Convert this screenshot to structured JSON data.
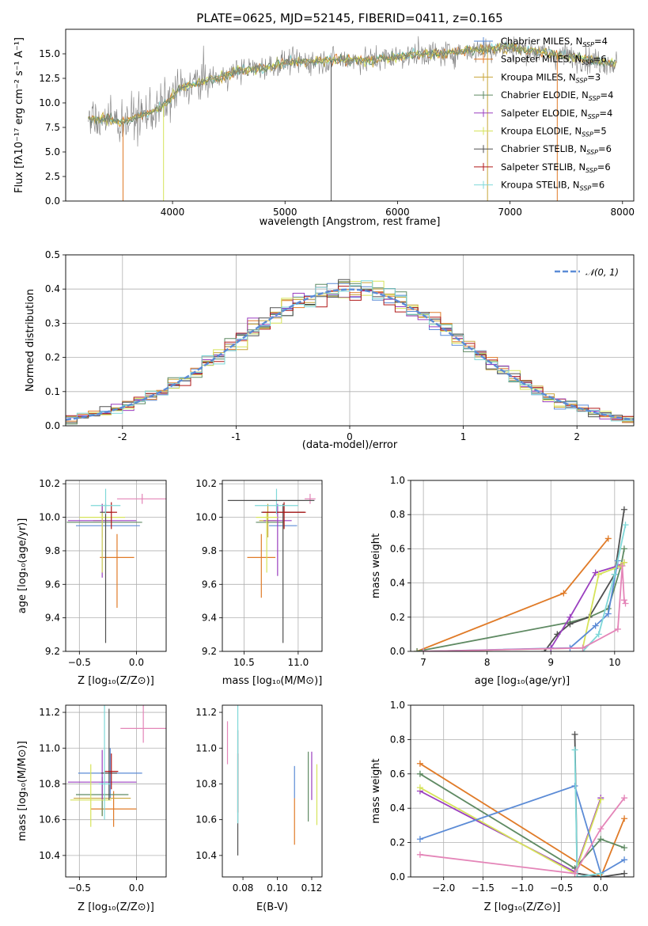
{
  "colors": {
    "chabrier_miles": "#5b8bd6",
    "salpeter_miles": "#e07b28",
    "kroupa_miles": "#c8a53a",
    "chabrier_elodie": "#5f8a63",
    "salpeter_elodie": "#9a3fbf",
    "kroupa_elodie": "#d6e35a",
    "chabrier_stelib": "#505050",
    "salpeter_stelib": "#b01818",
    "kroupa_stelib": "#7fd8d8",
    "pink": "#e485b8",
    "spectrum": "#7f7f7f",
    "gauss": "#5b8bd6",
    "grid": "#b0b0b0"
  },
  "chart_data": [
    {
      "id": "spectrum",
      "type": "line",
      "title": "PLATE=0625, MJD=52145, FIBERID=0411, z=0.165",
      "xlabel": "wavelength [Angstrom, rest frame]",
      "ylabel": "Flux [fλ10⁻¹⁷ erg cm⁻² s⁻¹ A⁻¹]",
      "xlim": [
        3050,
        8100
      ],
      "ylim": [
        0,
        17.5
      ],
      "xticks": [
        4000,
        5000,
        6000,
        7000,
        8000
      ],
      "yticks": [
        0.0,
        2.5,
        5.0,
        7.5,
        10.0,
        12.5,
        15.0
      ],
      "grid": false,
      "legend_position": "right",
      "legend": [
        {
          "key": "chabrier_miles",
          "label": "Chabrier MILES, N",
          "sub": "SSP",
          "tail": "=4"
        },
        {
          "key": "salpeter_miles",
          "label": "Salpeter MILES, N",
          "sub": "SSP",
          "tail": "=6"
        },
        {
          "key": "kroupa_miles",
          "label": "Kroupa MILES, N",
          "sub": "SSP",
          "tail": "=3"
        },
        {
          "key": "chabrier_elodie",
          "label": "Chabrier ELODIE, N",
          "sub": "SSP",
          "tail": "=4"
        },
        {
          "key": "salpeter_elodie",
          "label": "Salpeter ELODIE, N",
          "sub": "SSP",
          "tail": "=4"
        },
        {
          "key": "kroupa_elodie",
          "label": "Kroupa ELODIE, N",
          "sub": "SSP",
          "tail": "=5"
        },
        {
          "key": "chabrier_stelib",
          "label": "Chabrier STELIB, N",
          "sub": "SSP",
          "tail": "=6"
        },
        {
          "key": "salpeter_stelib",
          "label": "Salpeter STELIB, N",
          "sub": "SSP",
          "tail": "=6"
        },
        {
          "key": "kroupa_stelib",
          "label": "Kroupa STELIB, N",
          "sub": "SSP",
          "tail": "=6"
        }
      ],
      "continuum": {
        "x": [
          3250,
          3400,
          3550,
          3700,
          3850,
          3950,
          4050,
          4200,
          4400,
          4600,
          4800,
          5000,
          5200,
          5400,
          5600,
          5800,
          6000,
          6200,
          6400,
          6600,
          6800,
          7000,
          7200,
          7400,
          7600,
          7800,
          7950
        ],
        "y": [
          8.3,
          8.4,
          8.0,
          8.6,
          9.2,
          10.0,
          11.3,
          12.0,
          12.5,
          13.3,
          13.6,
          14.1,
          14.2,
          14.3,
          14.4,
          14.4,
          14.7,
          15.0,
          15.0,
          15.3,
          15.5,
          15.7,
          15.3,
          15.0,
          14.6,
          14.2,
          14.0
        ]
      },
      "dips": [
        {
          "x": 3560,
          "key": "salpeter_miles"
        },
        {
          "x": 3920,
          "key": "kroupa_elodie"
        },
        {
          "x": 5410,
          "key": "chabrier_stelib"
        },
        {
          "x": 6800,
          "key": "kroupa_miles"
        },
        {
          "x": 7420,
          "key": "salpeter_miles"
        }
      ]
    },
    {
      "id": "residuals",
      "type": "histogram",
      "xlabel": "(data-model)/error",
      "ylabel": "Normed distribution",
      "xlim": [
        -2.5,
        2.5
      ],
      "ylim": [
        0,
        0.5
      ],
      "xticks": [
        -2,
        -1,
        0,
        1,
        2
      ],
      "yticks": [
        0.0,
        0.1,
        0.2,
        0.3,
        0.4,
        0.5
      ],
      "grid": true,
      "bin_width": 0.1,
      "legend_position": "top-right",
      "legend": [
        {
          "label": "𝒩(0, 1)",
          "key": "gauss"
        }
      ],
      "series_keys": [
        "chabrier_miles",
        "salpeter_miles",
        "kroupa_miles",
        "chabrier_elodie",
        "salpeter_elodie",
        "kroupa_elodie",
        "chabrier_stelib",
        "salpeter_stelib",
        "kroupa_stelib"
      ]
    },
    {
      "id": "z-age",
      "type": "scatter",
      "xlabel": "Z [log₁₀(Z/Z⊙)]",
      "ylabel": "age  [log₁₀(age/yr)]",
      "xlim": [
        -0.62,
        0.26
      ],
      "ylim": [
        9.2,
        10.22
      ],
      "xticks": [
        -0.5,
        0.0
      ],
      "xtick_labels": [
        "−0.5",
        "0.0"
      ],
      "yticks": [
        9.2,
        9.4,
        9.6,
        9.8,
        10.0,
        10.2
      ],
      "grid": true,
      "points": [
        {
          "key": "chabrier_miles",
          "x": -0.25,
          "xerr": 0.28,
          "y": 9.95,
          "yerr": [
            0.0,
            0.0
          ]
        },
        {
          "key": "salpeter_miles",
          "x": -0.17,
          "xerr": 0.15,
          "y": 9.76,
          "yerr": [
            0.14,
            0.3
          ]
        },
        {
          "key": "kroupa_miles",
          "x": -0.3,
          "xerr": 0.08,
          "y": 9.98,
          "yerr": [
            0.1,
            0.1
          ]
        },
        {
          "key": "chabrier_elodie",
          "x": -0.28,
          "xerr": 0.33,
          "y": 9.97,
          "yerr": [
            0.0,
            0.0
          ]
        },
        {
          "key": "salpeter_elodie",
          "x": -0.3,
          "xerr": 0.3,
          "y": 9.98,
          "yerr": [
            0.1,
            0.34
          ]
        },
        {
          "key": "kroupa_elodie",
          "x": -0.3,
          "xerr": 0.2,
          "y": 10.0,
          "yerr": [
            0.03,
            0.33
          ]
        },
        {
          "key": "chabrier_stelib",
          "x": -0.27,
          "xerr": 0.05,
          "y": 10.03,
          "yerr": [
            0.05,
            0.78
          ]
        },
        {
          "key": "salpeter_stelib",
          "x": -0.22,
          "xerr": 0.05,
          "y": 10.03,
          "yerr": [
            0.06,
            0.1
          ]
        },
        {
          "key": "kroupa_stelib",
          "x": -0.27,
          "xerr": 0.13,
          "y": 10.07,
          "yerr": [
            0.1,
            0.05
          ]
        },
        {
          "key": "pink",
          "x": 0.05,
          "xerr": 0.22,
          "y": 10.11,
          "yerr": [
            0.03,
            0.03
          ]
        }
      ]
    },
    {
      "id": "mass-age",
      "type": "scatter",
      "xlabel": "mass [log₁₀(M/M⊙)]",
      "ylabel": "",
      "xlim": [
        10.3,
        11.22
      ],
      "ylim": [
        9.2,
        10.22
      ],
      "xticks": [
        10.5,
        11.0
      ],
      "xtick_labels": [
        "10.5",
        "11.0"
      ],
      "yticks": [
        9.2,
        9.4,
        9.6,
        9.8,
        10.0,
        10.2
      ],
      "grid": true,
      "points": [
        {
          "key": "chabrier_miles",
          "x": 10.86,
          "xerr": 0.13,
          "y": 9.95,
          "yerr": [
            0.0,
            0.0
          ]
        },
        {
          "key": "salpeter_miles",
          "x": 10.66,
          "xerr": 0.13,
          "y": 9.76,
          "yerr": [
            0.14,
            0.24
          ]
        },
        {
          "key": "kroupa_miles",
          "x": 10.72,
          "xerr": 0.08,
          "y": 9.98,
          "yerr": [
            0.1,
            0.1
          ]
        },
        {
          "key": "chabrier_elodie",
          "x": 10.74,
          "xerr": 0.13,
          "y": 9.97,
          "yerr": [
            0.0,
            0.0
          ]
        },
        {
          "key": "salpeter_elodie",
          "x": 10.81,
          "xerr": 0.13,
          "y": 9.98,
          "yerr": [
            0.1,
            0.33
          ]
        },
        {
          "key": "kroupa_elodie",
          "x": 10.71,
          "xerr": 0.1,
          "y": 10.0,
          "yerr": [
            0.03,
            0.33
          ]
        },
        {
          "key": "chabrier_stelib",
          "x": 10.86,
          "xerr": 0.2,
          "y": 10.03,
          "yerr": [
            0.05,
            0.78
          ]
        },
        {
          "key": "salpeter_stelib",
          "x": 10.87,
          "xerr": 0.2,
          "y": 10.03,
          "yerr": [
            0.06,
            0.1
          ]
        },
        {
          "key": "kroupa_stelib",
          "x": 10.8,
          "xerr": 0.2,
          "y": 10.07,
          "yerr": [
            0.1,
            0.05
          ]
        },
        {
          "key": "pink",
          "x": 11.11,
          "xerr": 0.05,
          "y": 10.11,
          "yerr": [
            0.03,
            0.03
          ]
        },
        {
          "key": "chabrier_stelib",
          "x": 10.75,
          "xerr": 0.4,
          "y": 10.1,
          "yerr": [
            0.0,
            0.0
          ]
        }
      ]
    },
    {
      "id": "age-weight",
      "type": "line",
      "xlabel": "age  [log₁₀(age/yr)]",
      "ylabel": "mass weight",
      "xlim": [
        6.8,
        10.3
      ],
      "ylim": [
        0,
        1.0
      ],
      "xticks": [
        7,
        8,
        9,
        10
      ],
      "yticks": [
        0.0,
        0.2,
        0.4,
        0.6,
        0.8,
        1.0
      ],
      "grid": true,
      "series": [
        {
          "key": "salpeter_miles",
          "x": [
            6.9,
            9.2,
            9.9
          ],
          "y": [
            0.0,
            0.34,
            0.66
          ]
        },
        {
          "key": "chabrier_elodie",
          "x": [
            6.9,
            9.3,
            9.6,
            9.9,
            10.1,
            10.15
          ],
          "y": [
            0.0,
            0.17,
            0.2,
            0.25,
            0.5,
            0.6
          ]
        },
        {
          "key": "chabrier_stelib",
          "x": [
            8.9,
            9.1,
            9.3,
            9.6,
            10.0,
            10.15
          ],
          "y": [
            0.0,
            0.1,
            0.16,
            0.2,
            0.45,
            0.83
          ]
        },
        {
          "key": "salpeter_elodie",
          "x": [
            9.0,
            9.3,
            9.7,
            10.05,
            10.15
          ],
          "y": [
            0.02,
            0.2,
            0.46,
            0.5,
            0.52
          ]
        },
        {
          "key": "kroupa_elodie",
          "x": [
            7.0,
            9.5,
            9.75,
            10.1,
            10.15
          ],
          "y": [
            0.0,
            0.02,
            0.45,
            0.5,
            0.52
          ]
        },
        {
          "key": "chabrier_miles",
          "x": [
            7.0,
            9.3,
            9.7,
            9.9,
            10.05
          ],
          "y": [
            0.0,
            0.02,
            0.15,
            0.22,
            0.53
          ]
        },
        {
          "key": "kroupa_stelib",
          "x": [
            9.5,
            9.75,
            10.0,
            10.17
          ],
          "y": [
            0.0,
            0.1,
            0.45,
            0.74
          ]
        },
        {
          "key": "pink",
          "x": [
            7.0,
            9.5,
            10.05,
            10.12,
            10.15,
            10.17
          ],
          "y": [
            0.0,
            0.02,
            0.13,
            0.5,
            0.3,
            0.28
          ]
        }
      ]
    },
    {
      "id": "z-mass",
      "type": "scatter",
      "xlabel": "Z [log₁₀(Z/Z⊙)]",
      "ylabel": "mass [log₁₀(M/M⊙)]",
      "xlim": [
        -0.62,
        0.26
      ],
      "ylim": [
        10.28,
        11.24
      ],
      "xticks": [
        -0.5,
        0.0
      ],
      "xtick_labels": [
        "−0.5",
        "0.0"
      ],
      "yticks": [
        10.4,
        10.6,
        10.8,
        11.0,
        11.2
      ],
      "grid": true,
      "points": [
        {
          "key": "chabrier_miles",
          "x": -0.23,
          "xerr": 0.28,
          "y": 10.86,
          "yerr": [
            0.14,
            0.14
          ]
        },
        {
          "key": "salpeter_miles",
          "x": -0.2,
          "xerr": 0.2,
          "y": 10.66,
          "yerr": [
            0.1,
            0.1
          ]
        },
        {
          "key": "kroupa_miles",
          "x": -0.3,
          "xerr": 0.25,
          "y": 10.72,
          "yerr": [
            0.1,
            0.1
          ]
        },
        {
          "key": "chabrier_elodie",
          "x": -0.3,
          "xerr": 0.23,
          "y": 10.74,
          "yerr": [
            0.1,
            0.12
          ]
        },
        {
          "key": "salpeter_elodie",
          "x": -0.3,
          "xerr": 0.3,
          "y": 10.81,
          "yerr": [
            0.18,
            0.1
          ]
        },
        {
          "key": "kroupa_elodie",
          "x": -0.4,
          "xerr": 0.18,
          "y": 10.71,
          "yerr": [
            0.2,
            0.15
          ]
        },
        {
          "key": "chabrier_stelib",
          "x": -0.24,
          "xerr": 0.07,
          "y": 10.86,
          "yerr": [
            0.36,
            0.15
          ]
        },
        {
          "key": "salpeter_stelib",
          "x": -0.22,
          "xerr": 0.06,
          "y": 10.87,
          "yerr": [
            0.1,
            0.1
          ]
        },
        {
          "key": "kroupa_stelib",
          "x": -0.28,
          "xerr": 0.05,
          "y": 10.8,
          "yerr": [
            0.48,
            0.2
          ]
        },
        {
          "key": "pink",
          "x": 0.06,
          "xerr": 0.2,
          "y": 11.11,
          "yerr": [
            0.15,
            0.08
          ]
        }
      ]
    },
    {
      "id": "ebv-mass",
      "type": "scatter",
      "xlabel": "E(B-V)",
      "ylabel": "",
      "xlim": [
        0.068,
        0.126
      ],
      "ylim": [
        10.28,
        11.24
      ],
      "xticks": [
        0.08,
        0.1,
        0.12
      ],
      "xtick_labels": [
        "0.08",
        "0.10",
        "0.12"
      ],
      "yticks": [
        10.4,
        10.6,
        10.8,
        11.0,
        11.2
      ],
      "grid": false,
      "points": [
        {
          "key": "chabrier_miles",
          "x": 0.11,
          "xerr": 0,
          "y": 10.86,
          "yerr": [
            0.04,
            0.14
          ]
        },
        {
          "key": "salpeter_miles",
          "x": 0.11,
          "xerr": 0,
          "y": 10.66,
          "yerr": [
            0.06,
            0.2
          ]
        },
        {
          "key": "chabrier_elodie",
          "x": 0.118,
          "xerr": 0,
          "y": 10.74,
          "yerr": [
            0.24,
            0.15
          ]
        },
        {
          "key": "salpeter_elodie",
          "x": 0.12,
          "xerr": 0,
          "y": 10.81,
          "yerr": [
            0.17,
            0.1
          ]
        },
        {
          "key": "kroupa_elodie",
          "x": 0.123,
          "xerr": 0,
          "y": 10.71,
          "yerr": [
            0.2,
            0.14
          ]
        },
        {
          "key": "salpeter_stelib",
          "x": 0.077,
          "xerr": 0,
          "y": 10.87,
          "yerr": [
            0.1,
            0.23
          ]
        },
        {
          "key": "chabrier_stelib",
          "x": 0.077,
          "xerr": 0,
          "y": 10.7,
          "yerr": [
            0.4,
            0.3
          ]
        },
        {
          "key": "kroupa_stelib",
          "x": 0.077,
          "xerr": 0,
          "y": 10.8,
          "yerr": [
            0.48,
            0.22
          ]
        },
        {
          "key": "pink",
          "x": 0.071,
          "xerr": 0,
          "y": 11.05,
          "yerr": [
            0.1,
            0.14
          ]
        }
      ]
    },
    {
      "id": "z-weight",
      "type": "line",
      "xlabel": "Z [log₁₀(Z/Z⊙)]",
      "ylabel": "mass weight",
      "xlim": [
        -2.42,
        0.42
      ],
      "ylim": [
        0,
        1.0
      ],
      "xticks": [
        -2.0,
        -1.5,
        -1.0,
        -0.5,
        0.0
      ],
      "xtick_labels": [
        "−2.0",
        "−1.5",
        "−1.0",
        "−0.5",
        "0.0"
      ],
      "yticks": [
        0.0,
        0.2,
        0.4,
        0.6,
        0.8,
        1.0
      ],
      "grid": true,
      "series": [
        {
          "key": "salpeter_miles",
          "x": [
            -2.3,
            0.0,
            0.3
          ],
          "y": [
            0.66,
            0.0,
            0.34
          ]
        },
        {
          "key": "chabrier_elodie",
          "x": [
            -2.3,
            -0.33,
            0.0,
            0.3
          ],
          "y": [
            0.6,
            0.05,
            0.22,
            0.17
          ]
        },
        {
          "key": "chabrier_stelib",
          "x": [
            -0.33,
            -0.3,
            0.0,
            0.3
          ],
          "y": [
            0.83,
            0.02,
            0.0,
            0.02
          ]
        },
        {
          "key": "salpeter_elodie",
          "x": [
            -2.3,
            -0.33,
            0.0
          ],
          "y": [
            0.5,
            0.03,
            0.46
          ]
        },
        {
          "key": "kroupa_elodie",
          "x": [
            -2.3,
            -0.33,
            0.0
          ],
          "y": [
            0.52,
            0.02,
            0.45
          ]
        },
        {
          "key": "chabrier_miles",
          "x": [
            -2.3,
            -0.33,
            0.0,
            0.3
          ],
          "y": [
            0.22,
            0.53,
            0.02,
            0.1
          ]
        },
        {
          "key": "kroupa_stelib",
          "x": [
            -0.33,
            -0.3,
            0.0
          ],
          "y": [
            0.74,
            0.0,
            0.02
          ]
        },
        {
          "key": "pink",
          "x": [
            -2.3,
            -0.33,
            0.0,
            0.3
          ],
          "y": [
            0.13,
            0.02,
            0.28,
            0.46
          ]
        }
      ]
    }
  ]
}
